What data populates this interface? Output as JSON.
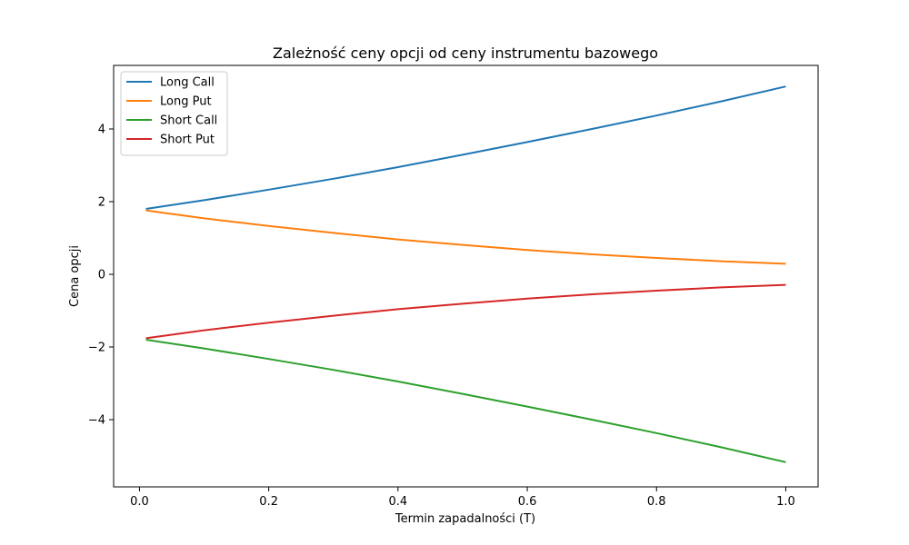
{
  "chart_data": {
    "type": "line",
    "title": "Zależność ceny opcji od ceny instrumentu bazowego",
    "xlabel": "Termin zapadalności (T)",
    "ylabel": "Cena opcji",
    "xlim": [
      -0.04,
      1.05
    ],
    "ylim": [
      -5.85,
      5.75
    ],
    "x_ticks": [
      0.0,
      0.2,
      0.4,
      0.6,
      0.8,
      1.0
    ],
    "x_tick_labels": [
      "0.0",
      "0.2",
      "0.4",
      "0.6",
      "0.8",
      "1.0"
    ],
    "y_ticks": [
      -4,
      -2,
      0,
      2,
      4
    ],
    "y_tick_labels": [
      "−4",
      "−2",
      "0",
      "2",
      "4"
    ],
    "grid": false,
    "legend_position": "top-left",
    "x": [
      0.01,
      0.1,
      0.2,
      0.3,
      0.4,
      0.5,
      0.6,
      0.7,
      0.8,
      0.9,
      1.0
    ],
    "series": [
      {
        "name": "Long Call",
        "color": "#1f77b4",
        "values": [
          1.8,
          2.04,
          2.33,
          2.63,
          2.95,
          3.29,
          3.64,
          4.0,
          4.37,
          4.76,
          5.17
        ]
      },
      {
        "name": "Long Put",
        "color": "#ff7f0e",
        "values": [
          1.76,
          1.54,
          1.33,
          1.14,
          0.96,
          0.81,
          0.67,
          0.55,
          0.45,
          0.36,
          0.29
        ]
      },
      {
        "name": "Short Call",
        "color": "#2ca02c",
        "values": [
          -1.8,
          -2.04,
          -2.33,
          -2.63,
          -2.95,
          -3.29,
          -3.64,
          -4.0,
          -4.37,
          -4.76,
          -5.17
        ]
      },
      {
        "name": "Short Put",
        "color": "#d62728",
        "values": [
          -1.76,
          -1.54,
          -1.33,
          -1.14,
          -0.96,
          -0.81,
          -0.67,
          -0.55,
          -0.45,
          -0.36,
          -0.29
        ]
      }
    ]
  }
}
